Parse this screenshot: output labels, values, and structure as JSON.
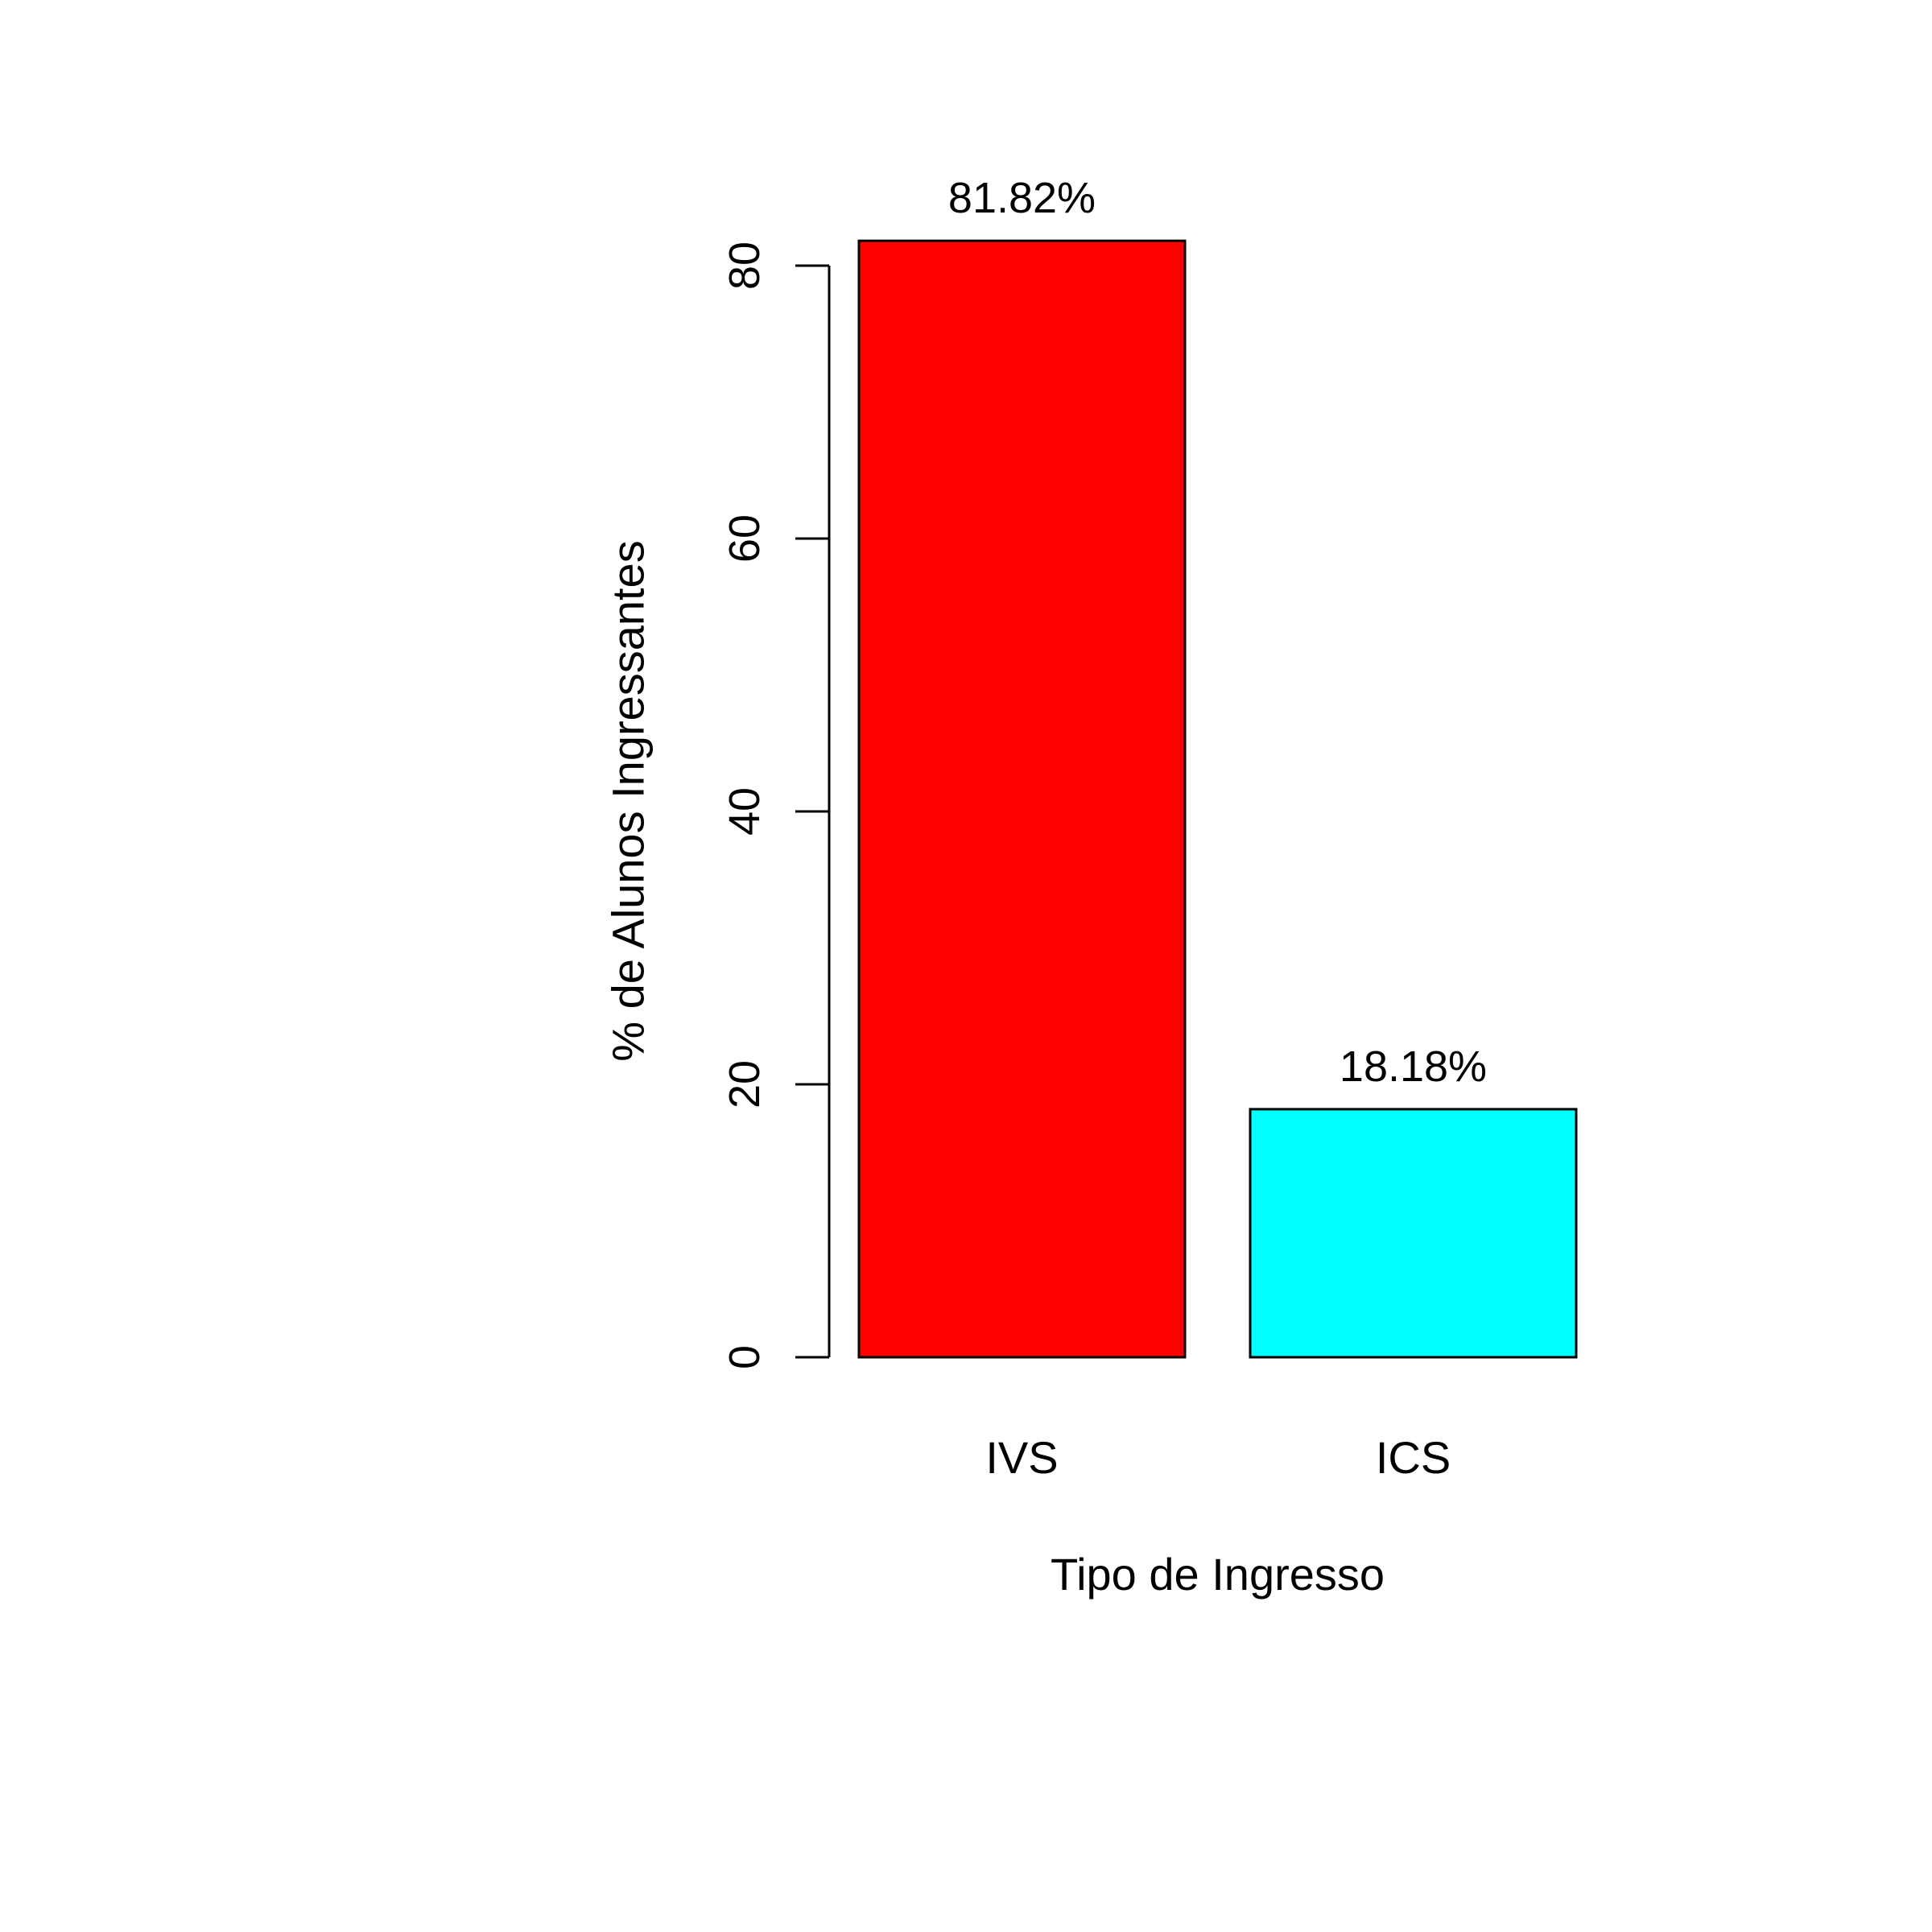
{
  "chart_data": {
    "type": "bar",
    "title": "",
    "xlabel": "Tipo de Ingresso",
    "ylabel": "% de Alunos Ingressantes",
    "categories": [
      "IVS",
      "ICS"
    ],
    "values": [
      81.82,
      18.18
    ],
    "data_labels": [
      "81.82%",
      "18.18%"
    ],
    "bar_colors": [
      "#ff0000",
      "#00ffff"
    ],
    "ylim": [
      0,
      80
    ],
    "yticks": [
      0,
      20,
      40,
      60,
      80
    ],
    "ytick_labels": [
      "0",
      "20",
      "40",
      "60",
      "80"
    ],
    "grid": false,
    "legend": "none"
  }
}
